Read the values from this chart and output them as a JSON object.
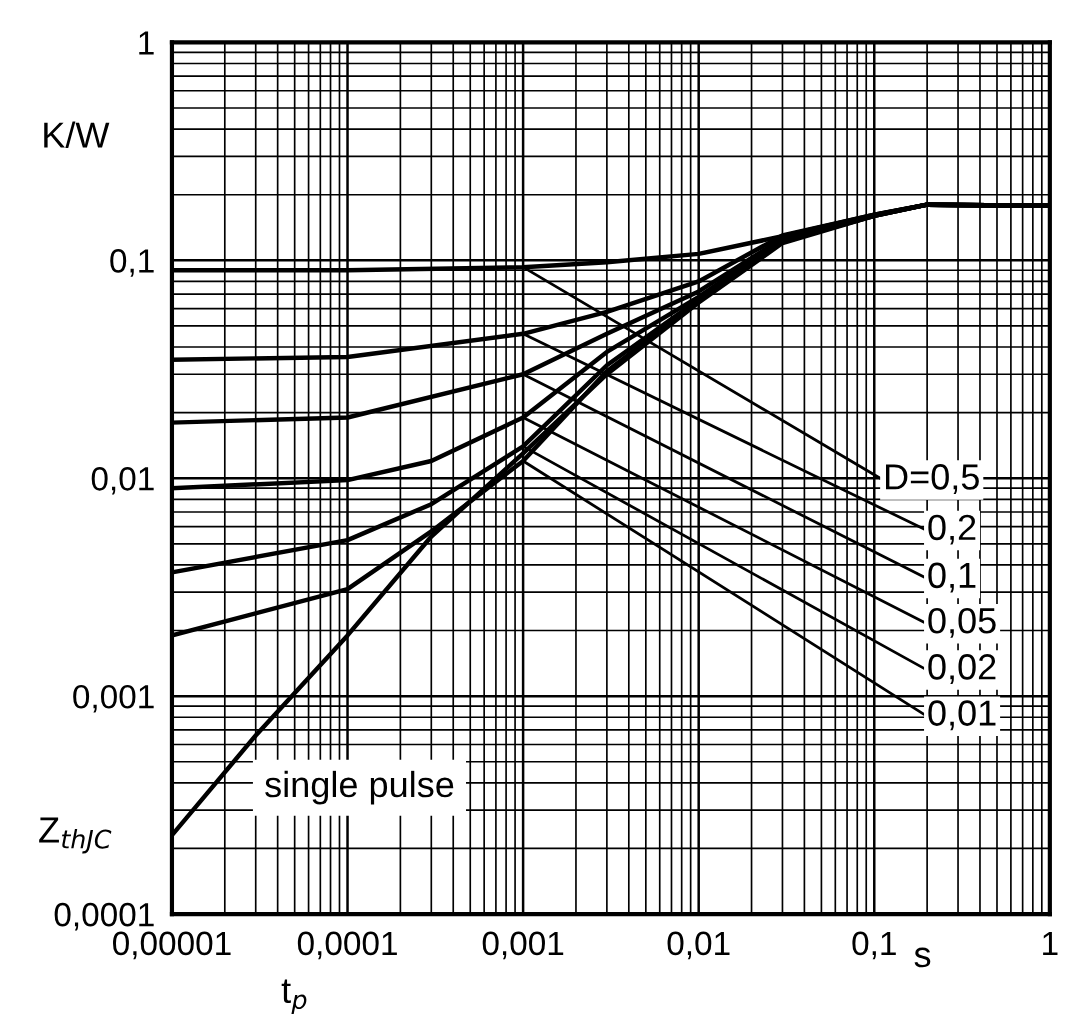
{
  "chart_data": {
    "type": "line",
    "xlabel": "t$_{p}$",
    "ylabel": "Z$_{thJC}$",
    "log": "xy",
    "grid": true,
    "legend": false,
    "marker": "none",
    "line_style": "solid",
    "xlim": [
      1e-05,
      1
    ],
    "ylim": [
      0.0001,
      1
    ],
    "xticks": [
      {
        "value": 1e-05,
        "label": "0,00001"
      },
      {
        "value": 0.0001,
        "label": "0,0001"
      },
      {
        "value": 0.001,
        "label": "0,001"
      },
      {
        "value": 0.01,
        "label": "0,01"
      },
      {
        "value": 0.1,
        "label": "0,1"
      },
      1
    ],
    "yticks": [
      {
        "value": 0.0001,
        "label": "0,0001"
      },
      {
        "value": 0.001,
        "label": "0,001"
      },
      {
        "value": 0.01,
        "label": "0,01"
      },
      {
        "value": 0.1,
        "label": "0,1"
      },
      1
    ],
    "annotations": [
      "K/W",
      "s"
    ],
    "series": [
      {
        "name": "D=0,5",
        "color": "#000000",
        "x": [
          1e-05,
          0.0001,
          0.001,
          0.003,
          0.01,
          0.03,
          0.1,
          0.2,
          1
        ],
        "values": [
          0.09,
          0.09,
          0.093,
          0.098,
          0.107,
          0.129,
          0.162,
          0.18,
          0.178
        ]
      },
      {
        "name": "0,2",
        "color": "#000000",
        "x": [
          1e-05,
          0.0001,
          0.001,
          0.003,
          0.01,
          0.03,
          0.1,
          0.2,
          1
        ],
        "values": [
          0.035,
          0.036,
          0.046,
          0.058,
          0.08,
          0.13,
          0.162,
          0.18,
          0.178
        ]
      },
      {
        "name": "0,1",
        "color": "#000000",
        "x": [
          1e-05,
          0.0001,
          0.001,
          0.003,
          0.01,
          0.03,
          0.1,
          0.2,
          1
        ],
        "values": [
          0.018,
          0.019,
          0.03,
          0.046,
          0.072,
          0.126,
          0.161,
          0.18,
          0.178
        ]
      },
      {
        "name": "0,05",
        "color": "#000000",
        "x": [
          1e-05,
          0.0001,
          0.0003,
          0.001,
          0.003,
          0.01,
          0.03,
          0.1,
          0.2,
          1
        ],
        "values": [
          0.009,
          0.0098,
          0.012,
          0.019,
          0.038,
          0.068,
          0.124,
          0.161,
          0.18,
          0.178
        ]
      },
      {
        "name": "0,02",
        "color": "#000000",
        "x": [
          1e-05,
          0.0001,
          0.0003,
          0.001,
          0.003,
          0.01,
          0.03,
          0.1,
          0.2,
          1
        ],
        "values": [
          0.0037,
          0.0052,
          0.0076,
          0.014,
          0.033,
          0.066,
          0.123,
          0.16,
          0.18,
          0.178
        ]
      },
      {
        "name": "0,01",
        "color": "#000000",
        "x": [
          1e-05,
          0.0001,
          0.0003,
          0.001,
          0.003,
          0.01,
          0.03,
          0.1,
          0.2,
          1
        ],
        "values": [
          0.0019,
          0.0031,
          0.0057,
          0.012,
          0.031,
          0.065,
          0.122,
          0.16,
          0.18,
          0.178
        ]
      },
      {
        "name": "single pulse",
        "color": "#000000",
        "x": [
          1e-05,
          3e-05,
          0.0001,
          0.0003,
          0.001,
          0.003,
          0.01,
          0.03,
          0.1,
          0.2,
          1
        ],
        "values": [
          0.00023,
          0.00066,
          0.0019,
          0.0054,
          0.013,
          0.03,
          0.064,
          0.12,
          0.16,
          0.18,
          0.178
        ]
      }
    ]
  }
}
